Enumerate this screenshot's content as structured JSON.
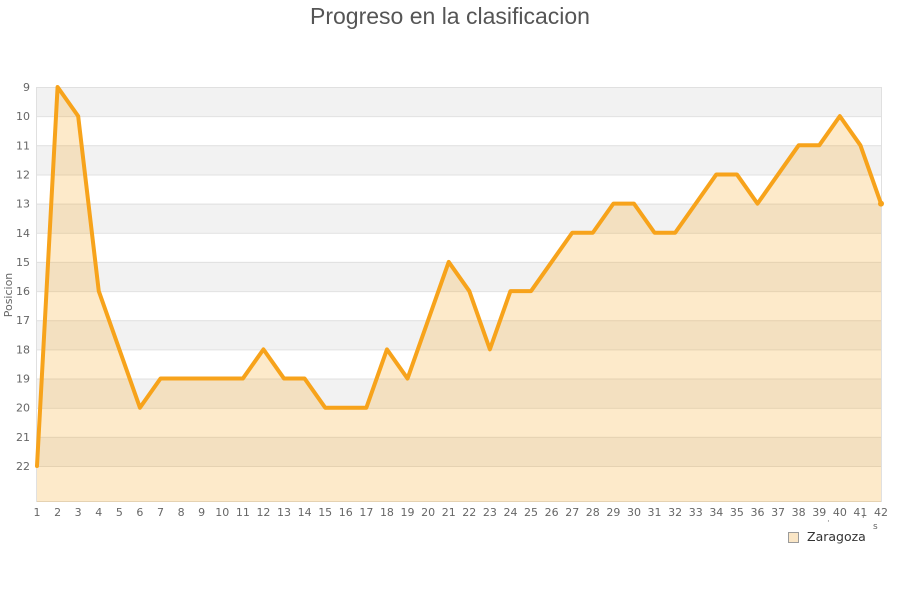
{
  "title": "Progreso en la clasificacion",
  "legend": {
    "label": "Zaragoza"
  },
  "footnote_fragments": {
    "m1": "·",
    "m2": "'",
    "m3": "s"
  },
  "chart_data": {
    "type": "area",
    "title": "Progreso en la clasificacion",
    "xlabel": "",
    "ylabel": "Posicion",
    "x": [
      1,
      2,
      3,
      4,
      5,
      6,
      7,
      8,
      9,
      10,
      11,
      12,
      13,
      14,
      15,
      16,
      17,
      18,
      19,
      20,
      21,
      22,
      23,
      24,
      25,
      26,
      27,
      28,
      29,
      30,
      31,
      32,
      33,
      34,
      35,
      36,
      37,
      38,
      39,
      40,
      41,
      42
    ],
    "series": [
      {
        "name": "Zaragoza",
        "values": [
          22,
          9,
          10,
          16,
          18,
          20,
          19,
          19,
          19,
          19,
          19,
          18,
          19,
          19,
          20,
          20,
          20,
          18,
          19,
          17,
          15,
          16,
          18,
          16,
          16,
          15,
          14,
          14,
          13,
          13,
          14,
          14,
          13,
          12,
          12,
          13,
          12,
          11,
          11,
          10,
          11,
          13
        ]
      }
    ],
    "y_ticks": [
      9,
      10,
      11,
      12,
      13,
      14,
      15,
      16,
      17,
      18,
      19,
      20,
      21,
      22
    ],
    "ylim": [
      9,
      22
    ],
    "y_inverted": true,
    "grid": true,
    "legend_position": "bottom-right",
    "colors": {
      "line": "#F7A31B",
      "fill": "rgba(247,163,27,0.23)",
      "band": "#f2f2f2",
      "gridline": "#e0e0e0",
      "tick_text": "#666666",
      "axis_title_text": "#666666",
      "title_text": "#555555",
      "legend_text": "#333333"
    }
  }
}
